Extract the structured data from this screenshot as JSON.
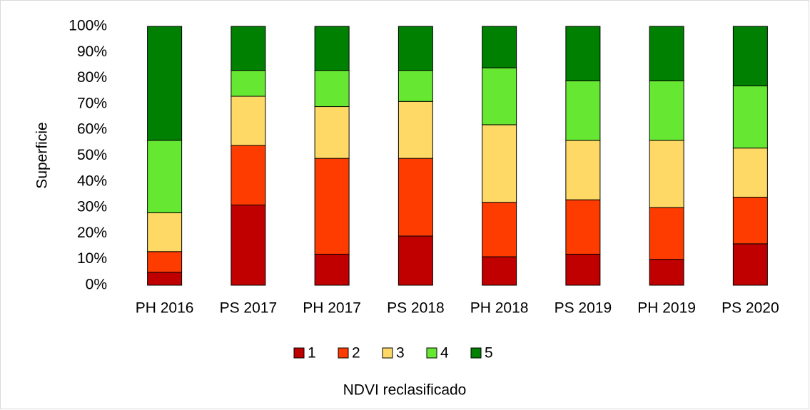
{
  "chart_data": {
    "type": "stacked_bar",
    "y_label": "Superficie",
    "x_label": "NDVI reclasificado",
    "categories": [
      "PH 2016",
      "PS 2017",
      "PH 2017",
      "PS 2018",
      "PH 2018",
      "PS 2019",
      "PH 2019",
      "PS 2020"
    ],
    "series": [
      {
        "name": "1",
        "color": "#c00000",
        "values": [
          5,
          31,
          12,
          19,
          11,
          12,
          10,
          16
        ]
      },
      {
        "name": "2",
        "color": "#ff3c00",
        "values": [
          8,
          23,
          37,
          30,
          21,
          21,
          20,
          18
        ]
      },
      {
        "name": "3",
        "color": "#ffd966",
        "values": [
          15,
          19,
          20,
          22,
          30,
          23,
          26,
          19
        ]
      },
      {
        "name": "4",
        "color": "#66e833",
        "values": [
          28,
          10,
          14,
          12,
          22,
          23,
          23,
          24
        ]
      },
      {
        "name": "5",
        "color": "#008000",
        "values": [
          44,
          17,
          17,
          17,
          16,
          21,
          21,
          23
        ]
      }
    ],
    "ylim": [
      0,
      100
    ],
    "yticks": [
      {
        "value": 0,
        "label": "0%"
      },
      {
        "value": 10,
        "label": "10%"
      },
      {
        "value": 20,
        "label": "20%"
      },
      {
        "value": 30,
        "label": "30%"
      },
      {
        "value": 40,
        "label": "40%"
      },
      {
        "value": 50,
        "label": "50%"
      },
      {
        "value": 60,
        "label": "60%"
      },
      {
        "value": 70,
        "label": "70%"
      },
      {
        "value": 80,
        "label": "80%"
      },
      {
        "value": 90,
        "label": "90%"
      },
      {
        "value": 100,
        "label": "100%"
      }
    ],
    "grid": false,
    "legend": "bottom"
  }
}
